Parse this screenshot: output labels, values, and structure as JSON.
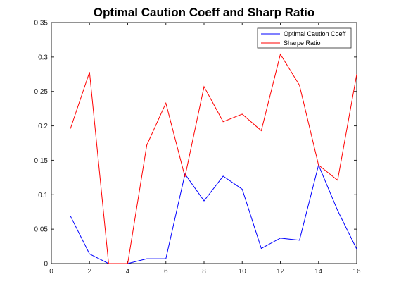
{
  "chart_data": {
    "type": "line",
    "title": "Optimal Caution Coeff and Sharp Ratio",
    "xlabel": "",
    "ylabel": "",
    "xlim": [
      0,
      16
    ],
    "ylim": [
      0,
      0.35
    ],
    "xticks": [
      0,
      2,
      4,
      6,
      8,
      10,
      12,
      14,
      16
    ],
    "yticks": [
      0,
      0.05,
      0.1,
      0.15,
      0.2,
      0.25,
      0.3,
      0.35
    ],
    "ytick_labels": [
      "0",
      "0.05",
      "0.1",
      "0.15",
      "0.2",
      "0.25",
      "0.3",
      "0.35"
    ],
    "grid": false,
    "legend_position": "top-right",
    "x": [
      1,
      2,
      3,
      4,
      5,
      6,
      7,
      8,
      9,
      10,
      11,
      12,
      13,
      14,
      15,
      16
    ],
    "series": [
      {
        "name": "Optimal Caution Coeff",
        "color": "#0000ff",
        "values": [
          0.069,
          0.014,
          0.0,
          0.0,
          0.007,
          0.007,
          0.13,
          0.091,
          0.127,
          0.108,
          0.022,
          0.037,
          0.034,
          0.143,
          0.077,
          0.021
        ]
      },
      {
        "name": "Sharpe Ratio",
        "color": "#ff0000",
        "values": [
          0.196,
          0.278,
          0.0,
          0.0,
          0.172,
          0.233,
          0.126,
          0.257,
          0.206,
          0.217,
          0.193,
          0.304,
          0.259,
          0.143,
          0.121,
          0.275
        ]
      }
    ]
  }
}
